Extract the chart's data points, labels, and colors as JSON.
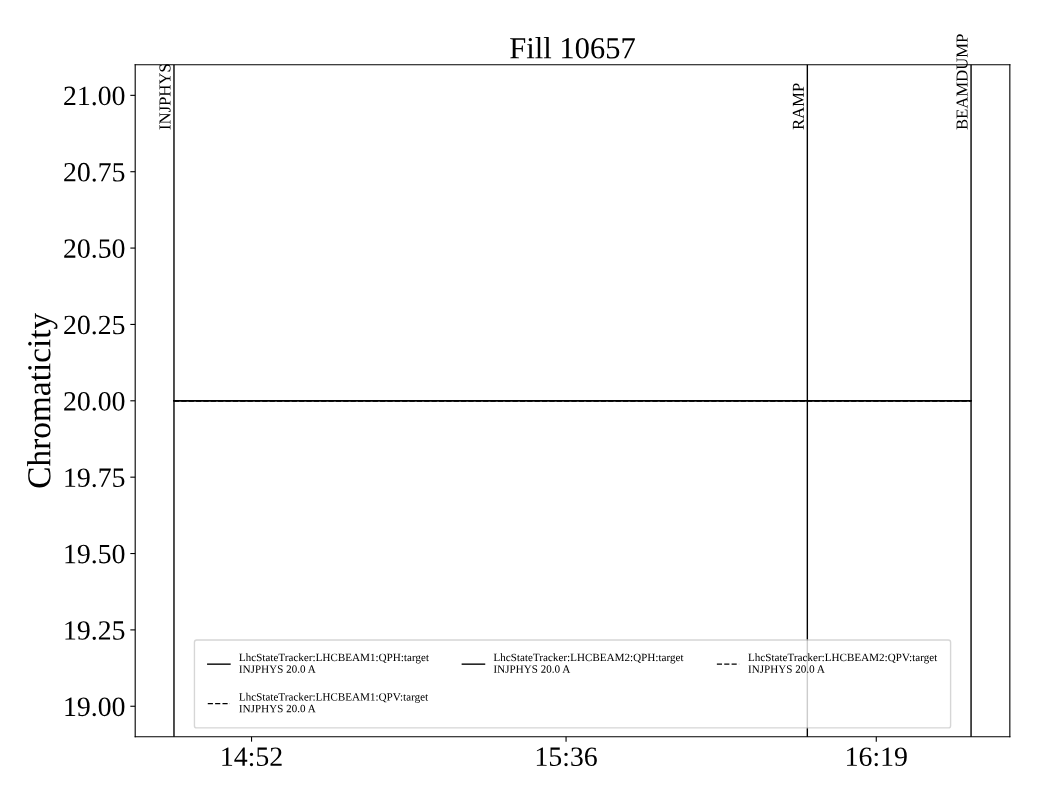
{
  "chart_data": {
    "type": "line",
    "title": "Fill 10657",
    "ylabel": "Chromaticity",
    "xlim": [
      14.6,
      16.63
    ],
    "xticks": [
      {
        "value": 14.87,
        "label": "14:52"
      },
      {
        "value": 15.6,
        "label": "15:36"
      },
      {
        "value": 16.32,
        "label": "16:19"
      }
    ],
    "ylim": [
      18.9,
      21.1
    ],
    "yticks": [
      {
        "value": 19.0,
        "label": "19.00"
      },
      {
        "value": 19.25,
        "label": "19.25"
      },
      {
        "value": 19.5,
        "label": "19.50"
      },
      {
        "value": 19.75,
        "label": "19.75"
      },
      {
        "value": 20.0,
        "label": "20.00"
      },
      {
        "value": 20.25,
        "label": "20.25"
      },
      {
        "value": 20.5,
        "label": "20.50"
      },
      {
        "value": 20.75,
        "label": "20.75"
      },
      {
        "value": 21.0,
        "label": "21.00"
      }
    ],
    "x": [
      14.69,
      16.54
    ],
    "series": [
      {
        "name": "LhcStateTracker:LHCBEAM1:QPH:target\nINJPHYS 20.0 A",
        "color": "#000000",
        "line_style": "solid",
        "values": [
          20.0,
          20.0
        ]
      },
      {
        "name": "LhcStateTracker:LHCBEAM1:QPV:target\nINJPHYS 20.0 A",
        "color": "#000000",
        "line_style": "dashed",
        "values": [
          20.0,
          20.0
        ]
      },
      {
        "name": "LhcStateTracker:LHCBEAM2:QPH:target\nINJPHYS 20.0 A",
        "color": "#000000",
        "line_style": "solid",
        "values": [
          20.0,
          20.0
        ]
      },
      {
        "name": "LhcStateTracker:LHCBEAM2:QPV:target\nINJPHYS 20.0 A",
        "color": "#000000",
        "line_style": "dashed",
        "values": [
          20.0,
          20.0
        ]
      }
    ],
    "ref_lines": [
      {
        "axis": "x",
        "value": 14.69,
        "label": "INJPHYS",
        "color": "#000000"
      },
      {
        "axis": "x",
        "value": 16.16,
        "label": "RAMP",
        "color": "#000000"
      },
      {
        "axis": "x",
        "value": 16.54,
        "label": "BEAMDUMP",
        "color": "#000000"
      }
    ],
    "grid": false,
    "legend": "bottom",
    "marker": "none"
  }
}
